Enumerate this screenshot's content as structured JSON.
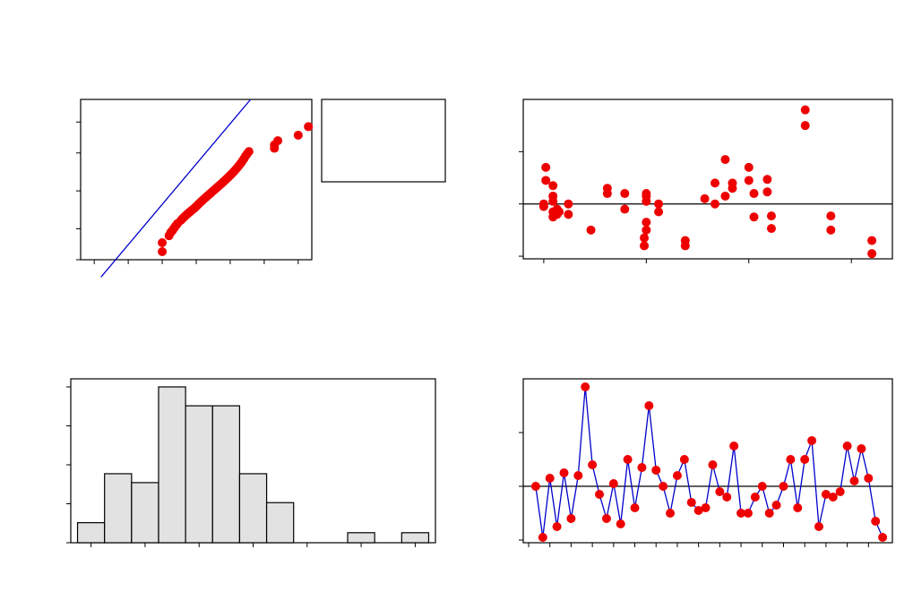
{
  "chart_data": [
    {
      "type": "scatter",
      "panel": "normal-probability-plot",
      "title": "",
      "xlabel": "",
      "ylabel": "",
      "xlim": [
        -3.4,
        3.4
      ],
      "ylim": [
        1.0,
        99.9
      ],
      "yscale": "probit",
      "yticks": [
        1,
        10,
        50,
        90,
        99
      ],
      "xticks": [
        -3,
        -2,
        -1,
        0,
        1,
        2,
        3
      ],
      "fit_line": {
        "x": [
          -2.8,
          1.6
        ],
        "y": [
          0.18,
          99.9
        ]
      },
      "legend_box": "right, empty",
      "points": [
        {
          "x": -1.0,
          "y": 2.0
        },
        {
          "x": -1.0,
          "y": 4.0
        },
        {
          "x": -0.8,
          "y": 6.5
        },
        {
          "x": -0.75,
          "y": 8.0
        },
        {
          "x": -0.7,
          "y": 9.0
        },
        {
          "x": -0.65,
          "y": 10.5
        },
        {
          "x": -0.6,
          "y": 12.0
        },
        {
          "x": -0.55,
          "y": 13.5
        },
        {
          "x": -0.45,
          "y": 16.0
        },
        {
          "x": -0.4,
          "y": 17.5
        },
        {
          "x": -0.35,
          "y": 19.0
        },
        {
          "x": -0.3,
          "y": 20.5
        },
        {
          "x": -0.25,
          "y": 22.0
        },
        {
          "x": -0.2,
          "y": 23.5
        },
        {
          "x": -0.15,
          "y": 25.0
        },
        {
          "x": -0.1,
          "y": 26.5
        },
        {
          "x": -0.05,
          "y": 28.0
        },
        {
          "x": 0.0,
          "y": 30.0
        },
        {
          "x": 0.05,
          "y": 32.0
        },
        {
          "x": 0.1,
          "y": 34.0
        },
        {
          "x": 0.15,
          "y": 36.0
        },
        {
          "x": 0.2,
          "y": 38.0
        },
        {
          "x": 0.25,
          "y": 40.0
        },
        {
          "x": 0.3,
          "y": 42.0
        },
        {
          "x": 0.35,
          "y": 44.0
        },
        {
          "x": 0.4,
          "y": 46.0
        },
        {
          "x": 0.45,
          "y": 48.0
        },
        {
          "x": 0.5,
          "y": 50.0
        },
        {
          "x": 0.55,
          "y": 52.0
        },
        {
          "x": 0.6,
          "y": 54.0
        },
        {
          "x": 0.65,
          "y": 56.0
        },
        {
          "x": 0.7,
          "y": 58.0
        },
        {
          "x": 0.75,
          "y": 60.0
        },
        {
          "x": 0.8,
          "y": 62.0
        },
        {
          "x": 0.85,
          "y": 64.0
        },
        {
          "x": 0.9,
          "y": 66.0
        },
        {
          "x": 0.95,
          "y": 68.0
        },
        {
          "x": 1.0,
          "y": 70.0
        },
        {
          "x": 1.05,
          "y": 72.0
        },
        {
          "x": 1.1,
          "y": 74.0
        },
        {
          "x": 1.15,
          "y": 76.0
        },
        {
          "x": 1.2,
          "y": 78.0
        },
        {
          "x": 1.25,
          "y": 80.0
        },
        {
          "x": 1.3,
          "y": 82.0
        },
        {
          "x": 1.35,
          "y": 84.0
        },
        {
          "x": 1.4,
          "y": 86.0
        },
        {
          "x": 1.45,
          "y": 88.0
        },
        {
          "x": 1.5,
          "y": 89.5
        },
        {
          "x": 1.55,
          "y": 90.8
        },
        {
          "x": 2.3,
          "y": 92.5
        },
        {
          "x": 2.3,
          "y": 94.0
        },
        {
          "x": 2.4,
          "y": 95.5
        },
        {
          "x": 3.0,
          "y": 97.0
        },
        {
          "x": 3.3,
          "y": 98.5
        }
      ]
    },
    {
      "type": "scatter",
      "panel": "residuals-versus-fits",
      "title": "",
      "xlabel": "",
      "ylabel": "",
      "xlim": [
        -0.2,
        3.4
      ],
      "ylim": [
        -1.05,
        2.0
      ],
      "xticks": [
        0,
        1,
        2,
        3
      ],
      "yticks": [
        -1,
        0,
        1
      ],
      "reference_line_y": 0,
      "points": [
        {
          "x": 0.0,
          "y": -0.05
        },
        {
          "x": 0.0,
          "y": 0.0
        },
        {
          "x": 0.02,
          "y": 0.45
        },
        {
          "x": 0.02,
          "y": 0.7
        },
        {
          "x": 0.09,
          "y": 0.35
        },
        {
          "x": 0.09,
          "y": 0.15
        },
        {
          "x": 0.09,
          "y": 0.05
        },
        {
          "x": 0.09,
          "y": -0.15
        },
        {
          "x": 0.09,
          "y": -0.25
        },
        {
          "x": 0.13,
          "y": -0.1
        },
        {
          "x": 0.13,
          "y": -0.2
        },
        {
          "x": 0.15,
          "y": -0.15
        },
        {
          "x": 0.24,
          "y": 0.0
        },
        {
          "x": 0.24,
          "y": -0.2
        },
        {
          "x": 0.46,
          "y": -0.5
        },
        {
          "x": 0.62,
          "y": 0.3
        },
        {
          "x": 0.62,
          "y": 0.2
        },
        {
          "x": 0.79,
          "y": 0.2
        },
        {
          "x": 0.79,
          "y": -0.1
        },
        {
          "x": 1.0,
          "y": 0.2
        },
        {
          "x": 1.0,
          "y": 0.15
        },
        {
          "x": 1.0,
          "y": 0.05
        },
        {
          "x": 1.0,
          "y": -0.35
        },
        {
          "x": 1.0,
          "y": -0.5
        },
        {
          "x": 0.98,
          "y": -0.65
        },
        {
          "x": 0.98,
          "y": -0.8
        },
        {
          "x": 1.12,
          "y": 0.0
        },
        {
          "x": 1.12,
          "y": -0.15
        },
        {
          "x": 1.38,
          "y": -0.7
        },
        {
          "x": 1.38,
          "y": -0.8
        },
        {
          "x": 1.57,
          "y": 0.1
        },
        {
          "x": 1.67,
          "y": 0.4
        },
        {
          "x": 1.67,
          "y": 0.0
        },
        {
          "x": 1.77,
          "y": 0.85
        },
        {
          "x": 1.77,
          "y": 0.15
        },
        {
          "x": 1.84,
          "y": 0.3
        },
        {
          "x": 1.84,
          "y": 0.4
        },
        {
          "x": 2.0,
          "y": 0.7
        },
        {
          "x": 2.0,
          "y": 0.45
        },
        {
          "x": 2.05,
          "y": 0.2
        },
        {
          "x": 2.05,
          "y": -0.25
        },
        {
          "x": 2.18,
          "y": 0.47
        },
        {
          "x": 2.18,
          "y": 0.23
        },
        {
          "x": 2.22,
          "y": -0.23
        },
        {
          "x": 2.22,
          "y": -0.47
        },
        {
          "x": 2.55,
          "y": 1.8
        },
        {
          "x": 2.55,
          "y": 1.5
        },
        {
          "x": 2.8,
          "y": -0.23
        },
        {
          "x": 2.8,
          "y": -0.5
        },
        {
          "x": 3.2,
          "y": -0.7
        },
        {
          "x": 3.2,
          "y": -0.95
        }
      ]
    },
    {
      "type": "bar",
      "panel": "histogram",
      "title": "",
      "xlabel": "",
      "ylabel": "",
      "ylim": [
        0,
        14
      ],
      "yticks": [
        0,
        3.5,
        7,
        10.5,
        14
      ],
      "x": [
        -0.6,
        -0.4,
        -0.2,
        0.0,
        0.2,
        0.4,
        0.6,
        0.8,
        1.0,
        1.2,
        1.4,
        1.6,
        1.8
      ],
      "bin_width": 0.2,
      "values": [
        1.8,
        6.2,
        5.4,
        14.0,
        12.3,
        12.3,
        6.2,
        3.6,
        0,
        0,
        0.9,
        0,
        0.9
      ],
      "xticks": [
        -0.6,
        -0.2,
        0.2,
        0.6,
        1.0,
        1.4,
        1.8
      ]
    },
    {
      "type": "line",
      "panel": "residuals-versus-order",
      "title": "",
      "xlabel": "",
      "ylabel": "",
      "xlim": [
        0,
        51
      ],
      "ylim": [
        -1.05,
        2.0
      ],
      "yticks": [
        -1,
        0,
        1
      ],
      "xticks": [
        0,
        3,
        6,
        9,
        12,
        15,
        18,
        21,
        24,
        27,
        30,
        33,
        36,
        39,
        42,
        45,
        48
      ],
      "reference_line_y": 0,
      "series": [
        {
          "x": [
            1,
            2,
            3,
            4,
            5,
            6,
            7,
            8,
            9,
            10,
            11,
            12,
            13,
            14,
            15,
            16,
            17,
            18,
            19,
            20,
            21,
            22,
            23,
            24,
            25,
            26,
            27,
            28,
            29,
            30,
            31,
            32,
            33,
            34,
            35,
            36,
            37,
            38,
            39,
            40,
            41,
            42,
            43,
            44,
            45,
            46,
            47,
            48,
            49,
            50
          ],
          "values": [
            0.0,
            -0.95,
            0.15,
            -0.75,
            0.25,
            -0.6,
            0.2,
            1.85,
            0.4,
            -0.15,
            -0.6,
            0.05,
            -0.7,
            0.5,
            -0.4,
            0.35,
            1.5,
            0.3,
            0.0,
            -0.5,
            0.2,
            0.5,
            -0.3,
            -0.45,
            -0.4,
            0.4,
            -0.1,
            -0.2,
            0.75,
            -0.5,
            -0.5,
            -0.2,
            0.0,
            -0.5,
            -0.35,
            0.0,
            0.5,
            -0.4,
            0.5,
            0.85,
            -0.75,
            -0.15,
            -0.2,
            -0.1,
            0.75,
            0.1,
            0.7,
            0.15,
            -0.65,
            -0.95
          ]
        }
      ]
    }
  ]
}
